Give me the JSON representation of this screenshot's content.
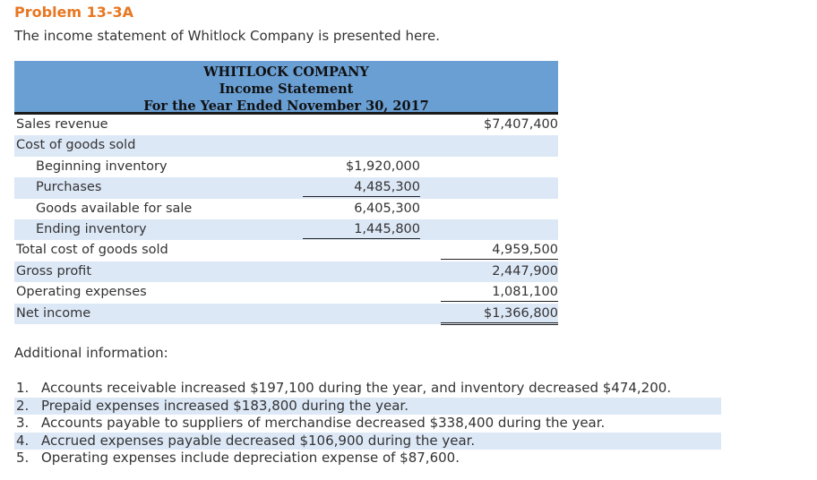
{
  "problem_title": "Problem 13-3A",
  "intro": "The income statement of Whitlock Company is presented here.",
  "statement": {
    "company": "WHITLOCK COMPANY",
    "name": "Income Statement",
    "period": "For the Year Ended November 30, 2017",
    "rows": [
      {
        "label": "Sales revenue",
        "col1": "",
        "col2": "$7,407,400"
      },
      {
        "label": "Cost of goods sold",
        "col1": "",
        "col2": ""
      },
      {
        "label": "Beginning inventory",
        "col1": "$1,920,000",
        "col2": ""
      },
      {
        "label": "Purchases",
        "col1": "4,485,300",
        "col2": ""
      },
      {
        "label": "Goods available for sale",
        "col1": "6,405,300",
        "col2": ""
      },
      {
        "label": "Ending inventory",
        "col1": "1,445,800",
        "col2": ""
      },
      {
        "label": "Total cost of goods sold",
        "col1": "",
        "col2": "4,959,500"
      },
      {
        "label": "Gross profit",
        "col1": "",
        "col2": "2,447,900"
      },
      {
        "label": "Operating expenses",
        "col1": "",
        "col2": "1,081,100"
      },
      {
        "label": "Net income",
        "col1": "",
        "col2": "$1,366,800"
      }
    ]
  },
  "additional": {
    "label": "Additional information:",
    "items": [
      {
        "num": "1.",
        "text": "Accounts receivable increased $197,100 during the year, and inventory decreased $474,200."
      },
      {
        "num": "2.",
        "text": "Prepaid expenses increased $183,800 during the year."
      },
      {
        "num": "3.",
        "text": "Accounts payable to suppliers of merchandise decreased $338,400 during the year."
      },
      {
        "num": "4.",
        "text": "Accrued expenses payable decreased $106,900 during the year."
      },
      {
        "num": "5.",
        "text": "Operating expenses include depreciation expense of $87,600."
      }
    ]
  },
  "colors": {
    "title_orange": "#e87722",
    "header_blue": "#6a9fd4",
    "row_shade": "#dde8f7"
  }
}
